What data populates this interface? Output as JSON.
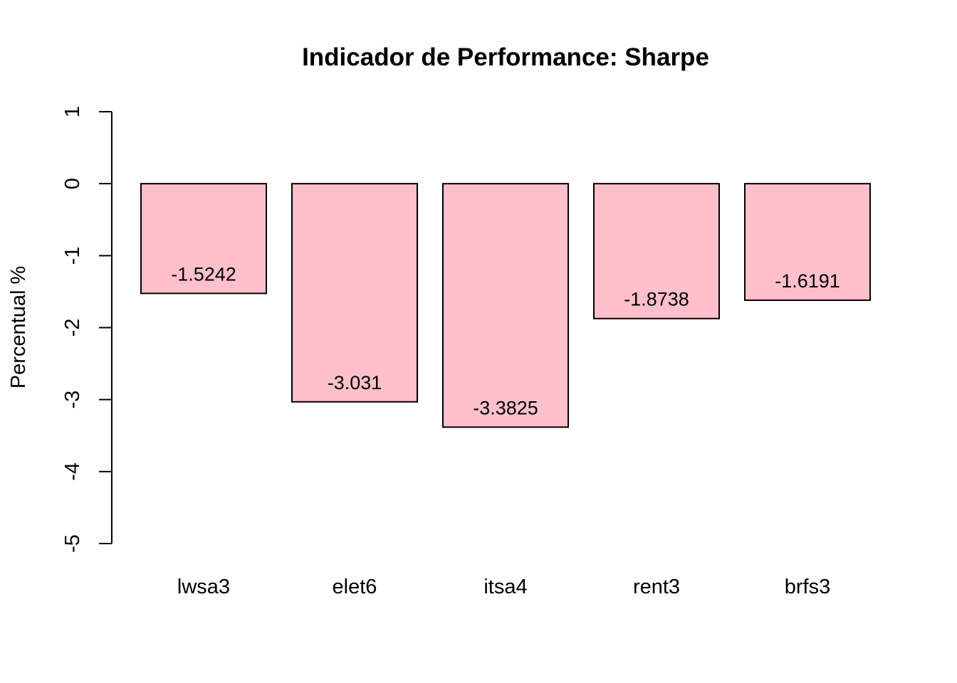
{
  "chart_data": {
    "type": "bar",
    "title": "Indicador de Performance: Sharpe",
    "xlabel": "",
    "ylabel": "Percentual %",
    "categories": [
      "lwsa3",
      "elet6",
      "itsa4",
      "rent3",
      "brfs3"
    ],
    "values": [
      -1.5242,
      -3.031,
      -3.3825,
      -1.8738,
      -1.6191
    ],
    "data_labels": [
      "-1.5242",
      "-3.031",
      "-3.3825",
      "-1.8738",
      "-1.6191"
    ],
    "ylim": [
      -5,
      1
    ],
    "y_ticks": [
      1,
      0,
      -1,
      -2,
      -3,
      -4,
      -5
    ],
    "y_tick_labels": [
      "1",
      "0",
      "-1",
      "-2",
      "-3",
      "-4",
      "-5"
    ],
    "grid": false,
    "legend": "none",
    "colors": {
      "bar_fill": "#FFC0CB",
      "bar_stroke": "#000000",
      "axis": "#000000"
    }
  }
}
